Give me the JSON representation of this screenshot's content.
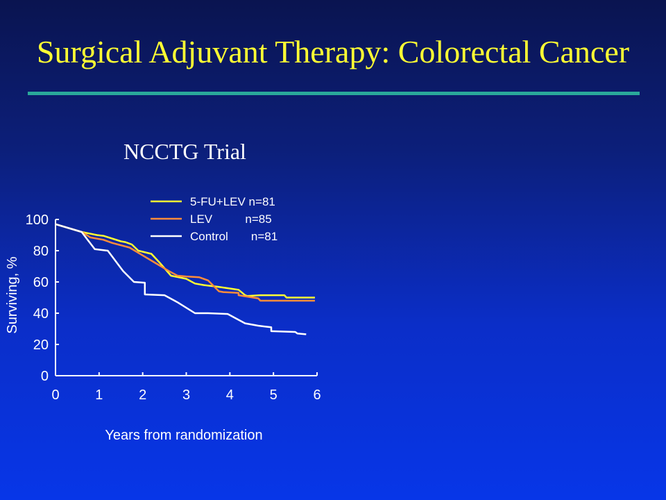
{
  "slide": {
    "title": "Surgical Adjuvant Therapy:  Colorectal Cancer"
  },
  "chart_data": {
    "type": "line",
    "title": "NCCTG Trial",
    "xlabel": "Years from randomization",
    "ylabel": "Surviving, %",
    "xlim": [
      0,
      6
    ],
    "ylim": [
      0,
      100
    ],
    "xticks": [
      0,
      1,
      2,
      3,
      4,
      5,
      6
    ],
    "yticks": [
      0,
      20,
      40,
      60,
      80,
      100
    ],
    "grid": false,
    "legend_position": "top",
    "series": [
      {
        "name": "5-FU+LEV",
        "legend_label": "5-FU+LEV n=81",
        "color": "#ffff33",
        "x": [
          0,
          0.6,
          0.95,
          1.1,
          1.5,
          1.6,
          1.75,
          1.9,
          2.2,
          2.4,
          2.65,
          3.0,
          3.2,
          3.4,
          3.7,
          3.95,
          4.2,
          4.35,
          4.4,
          4.7,
          5.25,
          5.3,
          5.95
        ],
        "y": [
          97,
          92,
          90,
          89.5,
          86,
          85.5,
          84,
          80,
          78,
          72,
          64,
          62,
          59,
          58,
          57,
          56,
          55,
          51.5,
          51,
          51.5,
          51.5,
          50,
          50
        ]
      },
      {
        "name": "LEV",
        "legend_label": "LEV          n=85",
        "color": "#ff8c3a",
        "x": [
          0,
          0.6,
          0.8,
          1.1,
          1.3,
          1.7,
          2.0,
          2.3,
          2.6,
          2.8,
          3.0,
          3.3,
          3.5,
          3.75,
          3.85,
          4.2,
          4.2,
          4.65,
          4.7,
          5.95
        ],
        "y": [
          97,
          92,
          88.5,
          87,
          85,
          82,
          77,
          72,
          67,
          64,
          63.5,
          63,
          61,
          54,
          53.5,
          53,
          51.5,
          49.5,
          48,
          48
        ]
      },
      {
        "name": "Control",
        "legend_label": "Control       n=81",
        "color": "#ffffff",
        "x": [
          0,
          0.6,
          0.9,
          1.2,
          1.55,
          1.8,
          2.05,
          2.05,
          2.5,
          2.8,
          3.2,
          3.5,
          3.95,
          4.35,
          4.65,
          4.95,
          4.95,
          5.5,
          5.55,
          5.75
        ],
        "y": [
          97,
          92,
          81,
          80,
          67,
          60,
          59.5,
          52,
          51.5,
          47,
          40,
          40,
          39.5,
          33.5,
          32,
          31,
          28.5,
          28,
          27,
          26.5
        ]
      }
    ]
  }
}
